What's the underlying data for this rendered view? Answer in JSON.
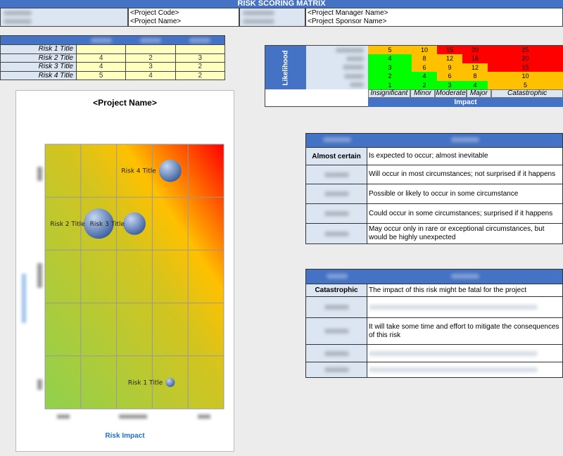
{
  "title": "RISK SCORING MATRIX",
  "project_info": {
    "project_code": "<Project Code>",
    "project_name": "<Project Name>",
    "manager_name": "<Project Manager Name>",
    "sponsor_name": "<Project Sponsor Name>"
  },
  "risk_table": {
    "rows": [
      {
        "name": "Risk 1 Title",
        "likelihood": "",
        "impact": "",
        "score": ""
      },
      {
        "name": "Risk 2 Title",
        "likelihood": "4",
        "impact": "2",
        "score": "3"
      },
      {
        "name": "Risk 3 Title",
        "likelihood": "4",
        "impact": "3",
        "score": "2"
      },
      {
        "name": "Risk 4 Title",
        "likelihood": "5",
        "impact": "4",
        "score": "2"
      }
    ]
  },
  "matrix": {
    "likelihood_label": "Likelihood",
    "impact_label": "Impact",
    "impact_levels": [
      "Insignificant",
      "Minor",
      "Moderate",
      "Major",
      "Catastrophic"
    ],
    "rows": [
      [
        5,
        10,
        15,
        20,
        25
      ],
      [
        4,
        8,
        12,
        16,
        20
      ],
      [
        3,
        6,
        9,
        12,
        15
      ],
      [
        2,
        4,
        6,
        8,
        10
      ],
      [
        1,
        2,
        3,
        4,
        5
      ]
    ],
    "colors": {
      "green": "#00ff00",
      "amber": "#ffc000",
      "red": "#ff0000"
    }
  },
  "likelihood_defs": [
    {
      "level": "Almost certain",
      "text": "Is expected to occur; almost inevitable"
    },
    {
      "level": "",
      "text": "Will occur in most circumstances; not surprised if it happens"
    },
    {
      "level": "",
      "text": "Possible or likely to occur in some circumstance"
    },
    {
      "level": "",
      "text": "Could occur in some circumstances; surprised if it happens"
    },
    {
      "level": "",
      "text": "May occur only in rare or exceptional circumstances, but would be highly unexpected"
    }
  ],
  "impact_defs": [
    {
      "level": "Catastrophic",
      "text": "The impact of this risk might be fatal for the project"
    },
    {
      "level": "",
      "text": ""
    },
    {
      "level": "",
      "text": "It will take some time and effort to mitigate the consequences of this risk"
    },
    {
      "level": "",
      "text": ""
    },
    {
      "level": "",
      "text": ""
    }
  ],
  "chart_data": {
    "type": "scatter",
    "title": "<Project Name>",
    "xlabel": "Risk Impact",
    "ylabel": "",
    "xlim": [
      0,
      5
    ],
    "ylim": [
      0,
      5
    ],
    "grid": true,
    "points": [
      {
        "label": "Risk 1 Title",
        "impact": 3.5,
        "likelihood": 0.5,
        "size": 1
      },
      {
        "label": "Risk 2 Title",
        "impact": 1.5,
        "likelihood": 3.5,
        "size": 3
      },
      {
        "label": "Risk 3 Title",
        "impact": 2.5,
        "likelihood": 3.5,
        "size": 2
      },
      {
        "label": "Risk 4 Title",
        "impact": 3.5,
        "likelihood": 4.5,
        "size": 2
      }
    ]
  }
}
